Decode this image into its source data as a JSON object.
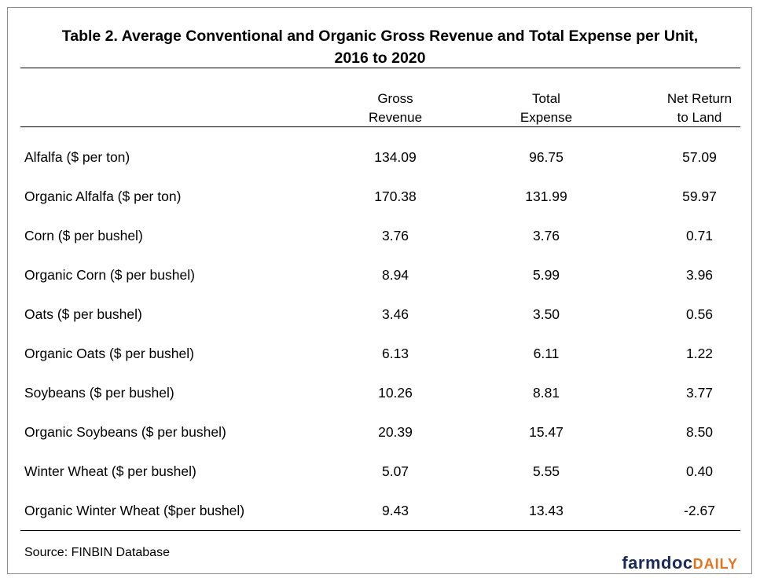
{
  "title_line1": "Table 2.  Average Conventional and Organic Gross Revenue and Total Expense per Unit,",
  "title_line2": "2016 to 2020",
  "columns": [
    {
      "line1": "Gross",
      "line2": "Revenue"
    },
    {
      "line1": "Total",
      "line2": "Expense"
    },
    {
      "line1": "Net Return",
      "line2": "to Land"
    }
  ],
  "rows": [
    {
      "label": "Alfalfa ($ per ton)",
      "values": [
        "134.09",
        "96.75",
        "57.09"
      ]
    },
    {
      "label": "Organic Alfalfa ($ per ton)",
      "values": [
        "170.38",
        "131.99",
        "59.97"
      ]
    },
    {
      "label": "Corn ($ per bushel)",
      "values": [
        "3.76",
        "3.76",
        "0.71"
      ]
    },
    {
      "label": "Organic Corn ($ per bushel)",
      "values": [
        "8.94",
        "5.99",
        "3.96"
      ]
    },
    {
      "label": "Oats ($ per bushel)",
      "values": [
        "3.46",
        "3.50",
        "0.56"
      ]
    },
    {
      "label": "Organic Oats ($ per bushel)",
      "values": [
        "6.13",
        "6.11",
        "1.22"
      ]
    },
    {
      "label": "Soybeans ($ per bushel)",
      "values": [
        "10.26",
        "8.81",
        "3.77"
      ]
    },
    {
      "label": "Organic Soybeans ($ per bushel)",
      "values": [
        "20.39",
        "15.47",
        "8.50"
      ]
    },
    {
      "label": "Winter Wheat ($ per bushel)",
      "values": [
        "5.07",
        "5.55",
        "0.40"
      ]
    },
    {
      "label": "Organic Winter Wheat ($per bushel)",
      "values": [
        "9.43",
        "13.43",
        "-2.67"
      ]
    }
  ],
  "source": "Source:  FINBIN Database",
  "logo": {
    "part1": "farmdoc",
    "part2": "DAILY"
  },
  "chart_data": {
    "type": "table",
    "title": "Table 2.  Average Conventional and Organic Gross Revenue and Total Expense per Unit, 2016 to 2020",
    "columns": [
      "Gross Revenue",
      "Total Expense",
      "Net Return to Land"
    ],
    "rows": [
      "Alfalfa ($ per ton)",
      "Organic Alfalfa ($ per ton)",
      "Corn ($ per bushel)",
      "Organic Corn ($ per bushel)",
      "Oats ($ per bushel)",
      "Organic Oats ($ per bushel)",
      "Soybeans ($ per bushel)",
      "Organic Soybeans ($ per bushel)",
      "Winter Wheat ($ per bushel)",
      "Organic Winter Wheat ($per bushel)"
    ],
    "values": [
      [
        134.09,
        96.75,
        57.09
      ],
      [
        170.38,
        131.99,
        59.97
      ],
      [
        3.76,
        3.76,
        0.71
      ],
      [
        8.94,
        5.99,
        3.96
      ],
      [
        3.46,
        3.5,
        0.56
      ],
      [
        6.13,
        6.11,
        1.22
      ],
      [
        10.26,
        8.81,
        3.77
      ],
      [
        20.39,
        15.47,
        8.5
      ],
      [
        5.07,
        5.55,
        0.4
      ],
      [
        9.43,
        13.43,
        -2.67
      ]
    ]
  }
}
